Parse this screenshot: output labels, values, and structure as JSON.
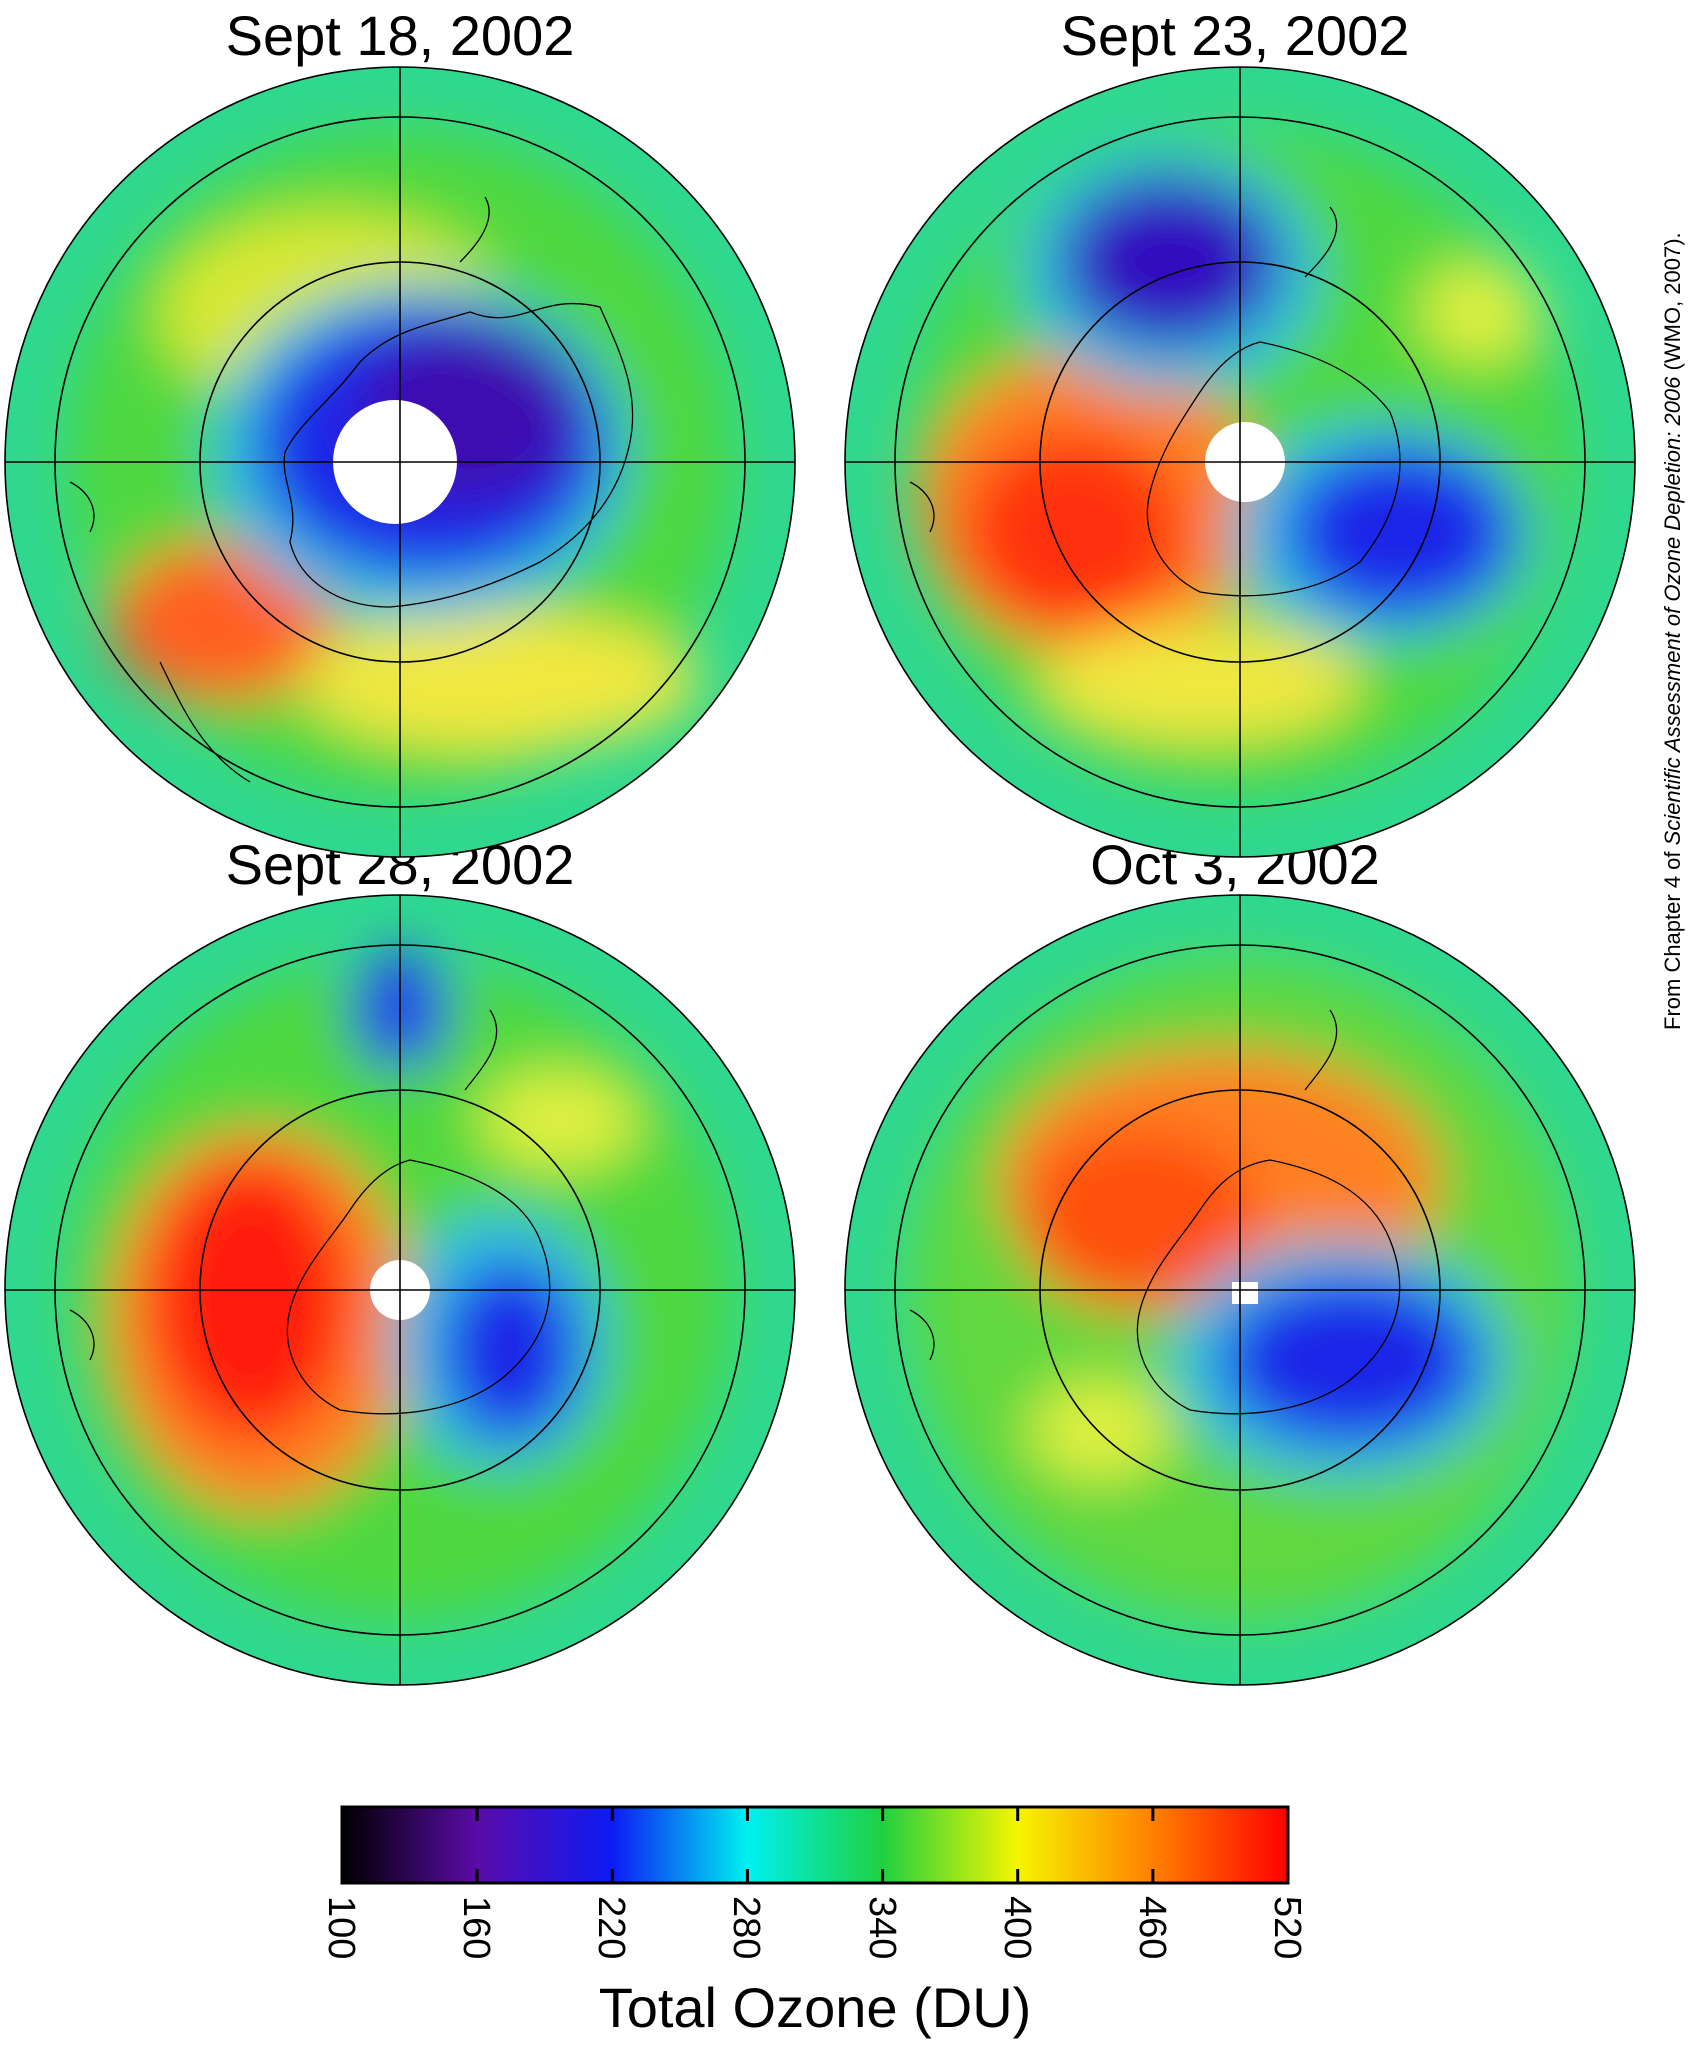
{
  "panels": [
    {
      "title": "Sept 18, 2002"
    },
    {
      "title": "Sept 23, 2002"
    },
    {
      "title": "Sept 28, 2002"
    },
    {
      "title": "Oct 3, 2002"
    }
  ],
  "colorbar": {
    "title": "Total Ozone (DU)",
    "min": 100,
    "max": 520,
    "ticks": [
      "100",
      "160",
      "220",
      "280",
      "340",
      "400",
      "460",
      "520"
    ],
    "stops": [
      {
        "value": 100,
        "color": "#000000"
      },
      {
        "value": 160,
        "color": "#5a0ba8"
      },
      {
        "value": 220,
        "color": "#0d1bf5"
      },
      {
        "value": 280,
        "color": "#00f0f0"
      },
      {
        "value": 340,
        "color": "#20d040"
      },
      {
        "value": 400,
        "color": "#f5f500"
      },
      {
        "value": 460,
        "color": "#ff8000"
      },
      {
        "value": 520,
        "color": "#ff0000"
      }
    ]
  },
  "credit": {
    "prefix": "From Chapter 4 of ",
    "italic": "Scientific Assessment of Ozone Depletion: 2006",
    "suffix": " (WMO, 2007)."
  },
  "colors": {
    "ozone_hole_low": "#2a10c0",
    "ozone_blue": "#1a3cf0",
    "ozone_cyan": "#20e0e0",
    "ozone_green": "#40d040",
    "ozone_yellow": "#f0f020",
    "ozone_orange": "#ff8c20",
    "ozone_red": "#ff1a1a"
  }
}
